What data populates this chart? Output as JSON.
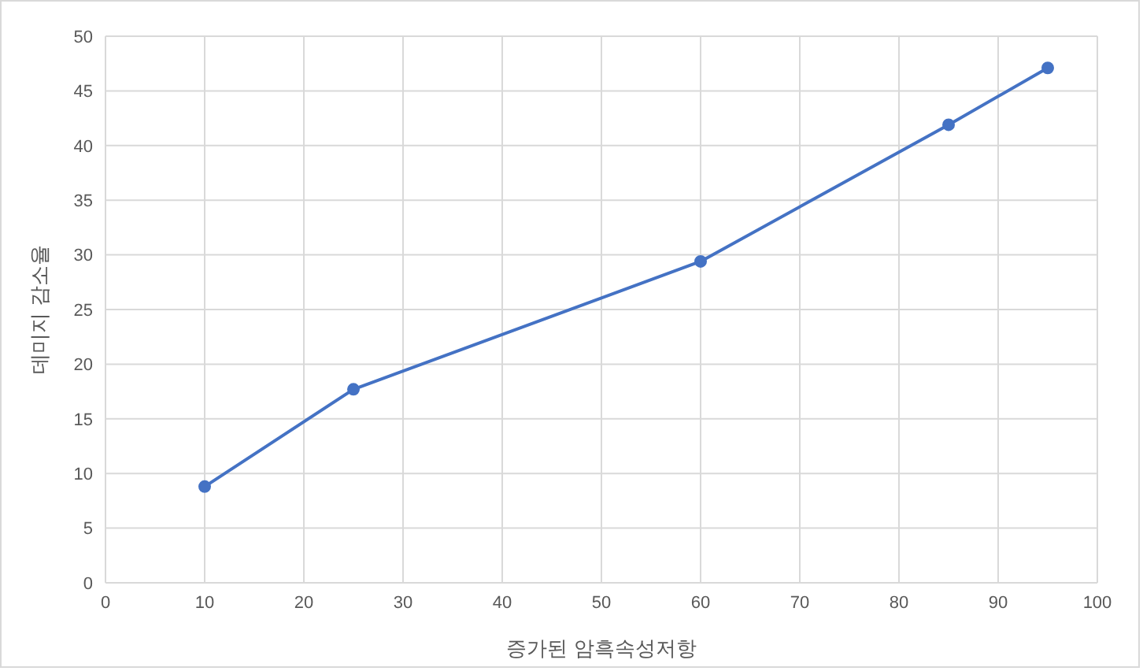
{
  "chart_data": {
    "type": "line",
    "xlabel": "증가된 암흑속성저항",
    "ylabel": "데미지 감소율",
    "x": [
      10,
      25,
      60,
      85,
      95
    ],
    "series": [
      {
        "color": "#4472c4",
        "values": [
          8.8,
          17.7,
          29.4,
          41.9,
          47.1
        ]
      }
    ],
    "xlim": [
      0,
      100
    ],
    "xticks": [
      0,
      10,
      20,
      30,
      40,
      50,
      60,
      70,
      80,
      90,
      100
    ],
    "ylim": [
      0,
      50
    ],
    "yticks": [
      0,
      5,
      10,
      15,
      20,
      25,
      30,
      35,
      40,
      45,
      50
    ],
    "grid": true,
    "legend": false,
    "marker": "circle",
    "line_style": "solid"
  }
}
